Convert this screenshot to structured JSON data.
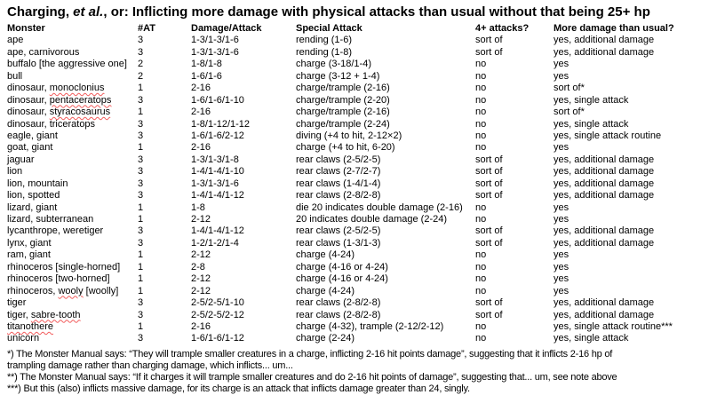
{
  "title": {
    "pre": "Charging, ",
    "italic": "et al.",
    "post": ", or: Inflicting more damage with physical attacks than usual without that being 25+ hp"
  },
  "colors": {
    "spellcheck_squiggle": "#f25c5c",
    "text": "#000000",
    "background": "#ffffff"
  },
  "table": {
    "columns": [
      "Monster",
      "#AT",
      "Damage/Attack",
      "Special Attack",
      "4+ attacks?",
      "More damage than usual?"
    ],
    "rows": [
      {
        "name_pre": "ape",
        "name_sq": "",
        "name_post": "",
        "at": "3",
        "damage": "1-3/1-3/1-6",
        "special": "rending (1-6)",
        "four_plus": "sort of",
        "more": "yes, additional damage"
      },
      {
        "name_pre": "ape, carnivorous",
        "name_sq": "",
        "name_post": "",
        "at": "3",
        "damage": "1-3/1-3/1-6",
        "special": "rending (1-8)",
        "four_plus": "sort of",
        "more": "yes, additional damage"
      },
      {
        "name_pre": "buffalo [the aggressive one]",
        "name_sq": "",
        "name_post": "",
        "at": "2",
        "damage": "1-8/1-8",
        "special": "charge (3-18/1-4)",
        "four_plus": "no",
        "more": "yes"
      },
      {
        "name_pre": "bull",
        "name_sq": "",
        "name_post": "",
        "at": "2",
        "damage": "1-6/1-6",
        "special": "charge (3-12 + 1-4)",
        "four_plus": "no",
        "more": "yes"
      },
      {
        "name_pre": "dinosaur, ",
        "name_sq": "monoclonius",
        "name_post": "",
        "at": "1",
        "damage": "2-16",
        "special": "charge/trample (2-16)",
        "four_plus": "no",
        "more": "sort of*"
      },
      {
        "name_pre": "dinosaur, ",
        "name_sq": "pentaceratops",
        "name_post": "",
        "at": "3",
        "damage": "1-6/1-6/1-10",
        "special": "charge/trample (2-20)",
        "four_plus": "no",
        "more": "yes, single attack"
      },
      {
        "name_pre": "dinosaur, ",
        "name_sq": "styracosaurus",
        "name_post": "",
        "at": "1",
        "damage": "2-16",
        "special": "charge/trample (2-16)",
        "four_plus": "no",
        "more": "sort of*"
      },
      {
        "name_pre": "dinosaur, triceratops",
        "name_sq": "",
        "name_post": "",
        "at": "3",
        "damage": "1-8/1-12/1-12",
        "special": "charge/trample (2-24)",
        "four_plus": "no",
        "more": "yes, single attack"
      },
      {
        "name_pre": "eagle, giant",
        "name_sq": "",
        "name_post": "",
        "at": "3",
        "damage": "1-6/1-6/2-12",
        "special": "diving (+4 to hit, 2-12×2)",
        "four_plus": "no",
        "more": "yes, single attack routine"
      },
      {
        "name_pre": "goat, giant",
        "name_sq": "",
        "name_post": "",
        "at": "1",
        "damage": "2-16",
        "special": "charge (+4 to hit, 6-20)",
        "four_plus": "no",
        "more": "yes"
      },
      {
        "name_pre": "jaguar",
        "name_sq": "",
        "name_post": "",
        "at": "3",
        "damage": "1-3/1-3/1-8",
        "special": "rear claws (2-5/2-5)",
        "four_plus": "sort of",
        "more": "yes, additional damage"
      },
      {
        "name_pre": "lion",
        "name_sq": "",
        "name_post": "",
        "at": "3",
        "damage": "1-4/1-4/1-10",
        "special": "rear claws (2-7/2-7)",
        "four_plus": "sort of",
        "more": "yes, additional damage"
      },
      {
        "name_pre": "lion, mountain",
        "name_sq": "",
        "name_post": "",
        "at": "3",
        "damage": "1-3/1-3/1-6",
        "special": "rear claws (1-4/1-4)",
        "four_plus": "sort of",
        "more": "yes, additional damage"
      },
      {
        "name_pre": "lion, spotted",
        "name_sq": "",
        "name_post": "",
        "at": "3",
        "damage": "1-4/1-4/1-12",
        "special": "rear claws (2-8/2-8)",
        "four_plus": "sort of",
        "more": "yes, additional damage"
      },
      {
        "name_pre": "lizard, giant",
        "name_sq": "",
        "name_post": "",
        "at": "1",
        "damage": "1-8",
        "special": "die 20 indicates double damage (2-16)",
        "four_plus": "no",
        "more": "yes"
      },
      {
        "name_pre": "lizard, subterranean",
        "name_sq": "",
        "name_post": "",
        "at": "1",
        "damage": "2-12",
        "special": "20 indicates double damage (2-24)",
        "four_plus": "no",
        "more": "yes"
      },
      {
        "name_pre": "lycanthrope, weretiger",
        "name_sq": "",
        "name_post": "",
        "at": "3",
        "damage": "1-4/1-4/1-12",
        "special": "rear claws (2-5/2-5)",
        "four_plus": "sort of",
        "more": "yes, additional damage"
      },
      {
        "name_pre": "lynx, giant",
        "name_sq": "",
        "name_post": "",
        "at": "3",
        "damage": "1-2/1-2/1-4",
        "special": "rear claws (1-3/1-3)",
        "four_plus": "sort of",
        "more": "yes, additional damage"
      },
      {
        "name_pre": "ram, giant",
        "name_sq": "",
        "name_post": "",
        "at": "1",
        "damage": "2-12",
        "special": "charge (4-24)",
        "four_plus": "no",
        "more": "yes"
      },
      {
        "name_pre": "rhinoceros [single-horned]",
        "name_sq": "",
        "name_post": "",
        "at": "1",
        "damage": "2-8",
        "special": "charge (4-16 or 4-24)",
        "four_plus": "no",
        "more": "yes"
      },
      {
        "name_pre": "rhinoceros [two-horned]",
        "name_sq": "",
        "name_post": "",
        "at": "1",
        "damage": "2-12",
        "special": "charge (4-16 or 4-24)",
        "four_plus": "no",
        "more": "yes"
      },
      {
        "name_pre": "rhinoceros, ",
        "name_sq": "wooly",
        "name_post": " [woolly]",
        "at": "1",
        "damage": "2-12",
        "special": "charge (4-24)",
        "four_plus": "no",
        "more": "yes"
      },
      {
        "name_pre": "tiger",
        "name_sq": "",
        "name_post": "",
        "at": "3",
        "damage": "2-5/2-5/1-10",
        "special": "rear claws (2-8/2-8)",
        "four_plus": "sort of",
        "more": "yes, additional damage"
      },
      {
        "name_pre": "tiger, ",
        "name_sq": "sabre-tooth",
        "name_post": "",
        "at": "3",
        "damage": "2-5/2-5/2-12",
        "special": "rear claws (2-8/2-8)",
        "four_plus": "sort of",
        "more": "yes, additional damage"
      },
      {
        "name_pre": "",
        "name_sq": "titanothere",
        "name_post": "",
        "at": "1",
        "damage": "2-16",
        "special": "charge (4-32), trample (2-12/2-12)",
        "four_plus": "no",
        "more": "yes, single attack routine***"
      },
      {
        "name_pre": "unicorn",
        "name_sq": "",
        "name_post": "",
        "at": "3",
        "damage": "1-6/1-6/1-12",
        "special": "charge (2-24)",
        "four_plus": "no",
        "more": "yes, single attack"
      }
    ]
  },
  "footnote_lines": [
    "*) The Monster Manual says: “They will trample smaller creatures in a charge, inflicting 2-16 hit points damage”, suggesting that it inflicts 2-16 hp of",
    "trampling damage rather than charging damage, which inflicts... um...",
    "**) The Monster Manual says: “If it charges it will trample smaller creatures and do 2-16 hit points of damage”, suggesting that... um, see note above",
    "***) But this (also) inflicts massive damage, for its charge is an attack that inflicts damage greater than 24, singly."
  ]
}
